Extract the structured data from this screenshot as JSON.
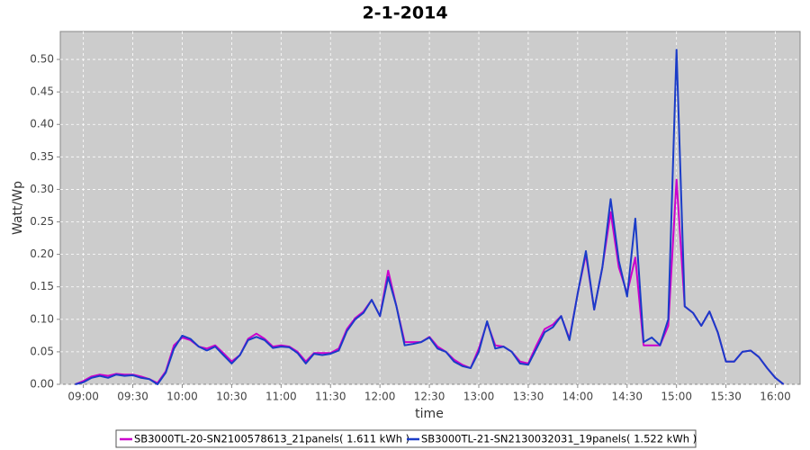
{
  "chart_data": {
    "type": "line",
    "title": "2-1-2014",
    "x_label": "time",
    "y_label": "Watt/Wp",
    "x": [
      "08:55",
      "09:00",
      "09:05",
      "09:10",
      "09:15",
      "09:20",
      "09:25",
      "09:30",
      "09:35",
      "09:40",
      "09:45",
      "09:50",
      "09:55",
      "10:00",
      "10:05",
      "10:10",
      "10:15",
      "10:20",
      "10:25",
      "10:30",
      "10:35",
      "10:40",
      "10:45",
      "10:50",
      "10:55",
      "11:00",
      "11:05",
      "11:10",
      "11:15",
      "11:20",
      "11:25",
      "11:30",
      "11:35",
      "11:40",
      "11:45",
      "11:50",
      "11:55",
      "12:00",
      "12:05",
      "12:10",
      "12:15",
      "12:20",
      "12:25",
      "12:30",
      "12:35",
      "12:40",
      "12:45",
      "12:50",
      "12:55",
      "13:00",
      "13:05",
      "13:10",
      "13:15",
      "13:20",
      "13:25",
      "13:30",
      "13:35",
      "13:40",
      "13:45",
      "13:50",
      "13:55",
      "14:00",
      "14:05",
      "14:10",
      "14:15",
      "14:20",
      "14:25",
      "14:30",
      "14:35",
      "14:40",
      "14:45",
      "14:50",
      "14:55",
      "15:00",
      "15:05",
      "15:10",
      "15:15",
      "15:20",
      "15:25",
      "15:30",
      "15:35",
      "15:40",
      "15:45",
      "15:50",
      "15:55",
      "16:00",
      "16:05"
    ],
    "series": [
      {
        "name": "SB3000TL-20-SN2100578613_21panels( 1.611 kWh )",
        "color": "#cc00cc",
        "values": [
          0.0,
          0.005,
          0.012,
          0.015,
          0.013,
          0.016,
          0.015,
          0.015,
          0.012,
          0.008,
          0.002,
          0.02,
          0.06,
          0.072,
          0.068,
          0.058,
          0.055,
          0.06,
          0.048,
          0.035,
          0.045,
          0.07,
          0.078,
          0.07,
          0.058,
          0.06,
          0.058,
          0.05,
          0.035,
          0.048,
          0.048,
          0.048,
          0.055,
          0.085,
          0.102,
          0.112,
          0.13,
          0.105,
          0.175,
          0.12,
          0.065,
          0.065,
          0.065,
          0.073,
          0.058,
          0.05,
          0.038,
          0.03,
          0.025,
          0.055,
          0.095,
          0.06,
          0.058,
          0.05,
          0.035,
          0.032,
          0.06,
          0.085,
          0.092,
          0.105,
          0.07,
          0.14,
          0.2,
          0.115,
          0.18,
          0.265,
          0.18,
          0.14,
          0.195,
          0.06,
          0.06,
          0.06,
          0.09,
          0.315,
          0.12,
          0.11,
          0.09,
          0.112,
          0.08,
          0.035,
          0.035,
          0.05,
          0.052,
          0.042,
          0.025,
          0.01,
          0.0
        ]
      },
      {
        "name": "SB3000TL-21-SN2130032031_19panels( 1.522 kWh )",
        "color": "#1a3cc8",
        "values": [
          0.0,
          0.003,
          0.01,
          0.013,
          0.01,
          0.015,
          0.013,
          0.014,
          0.01,
          0.008,
          0.0,
          0.018,
          0.055,
          0.075,
          0.07,
          0.058,
          0.052,
          0.058,
          0.045,
          0.032,
          0.045,
          0.068,
          0.073,
          0.068,
          0.056,
          0.058,
          0.057,
          0.048,
          0.032,
          0.047,
          0.045,
          0.047,
          0.052,
          0.082,
          0.1,
          0.11,
          0.13,
          0.105,
          0.165,
          0.12,
          0.06,
          0.062,
          0.065,
          0.072,
          0.055,
          0.05,
          0.035,
          0.028,
          0.025,
          0.05,
          0.097,
          0.055,
          0.058,
          0.05,
          0.032,
          0.03,
          0.055,
          0.08,
          0.088,
          0.105,
          0.068,
          0.14,
          0.205,
          0.115,
          0.18,
          0.285,
          0.19,
          0.135,
          0.255,
          0.065,
          0.072,
          0.06,
          0.1,
          0.515,
          0.12,
          0.11,
          0.09,
          0.112,
          0.08,
          0.035,
          0.035,
          0.05,
          0.052,
          0.042,
          0.025,
          0.01,
          0.0
        ]
      }
    ],
    "xlim": [
      "08:46",
      "16:15"
    ],
    "xticks": [
      "09:00",
      "09:30",
      "10:00",
      "10:30",
      "11:00",
      "11:30",
      "12:00",
      "12:30",
      "13:00",
      "13:30",
      "14:00",
      "14:30",
      "15:00",
      "15:30",
      "16:00"
    ],
    "ylim": [
      0,
      0.543
    ],
    "yticks": [
      {
        "value": 0,
        "label": "0.00"
      },
      0.05,
      {
        "value": 0.1,
        "label": "0.10"
      },
      0.15,
      {
        "value": 0.2,
        "label": "0.20"
      },
      0.25,
      {
        "value": 0.3,
        "label": "0.30"
      },
      0.35,
      {
        "value": 0.4,
        "label": "0.40"
      },
      0.45,
      {
        "value": 0.5,
        "label": "0.50"
      }
    ],
    "grid": true,
    "legend": "bottom"
  }
}
